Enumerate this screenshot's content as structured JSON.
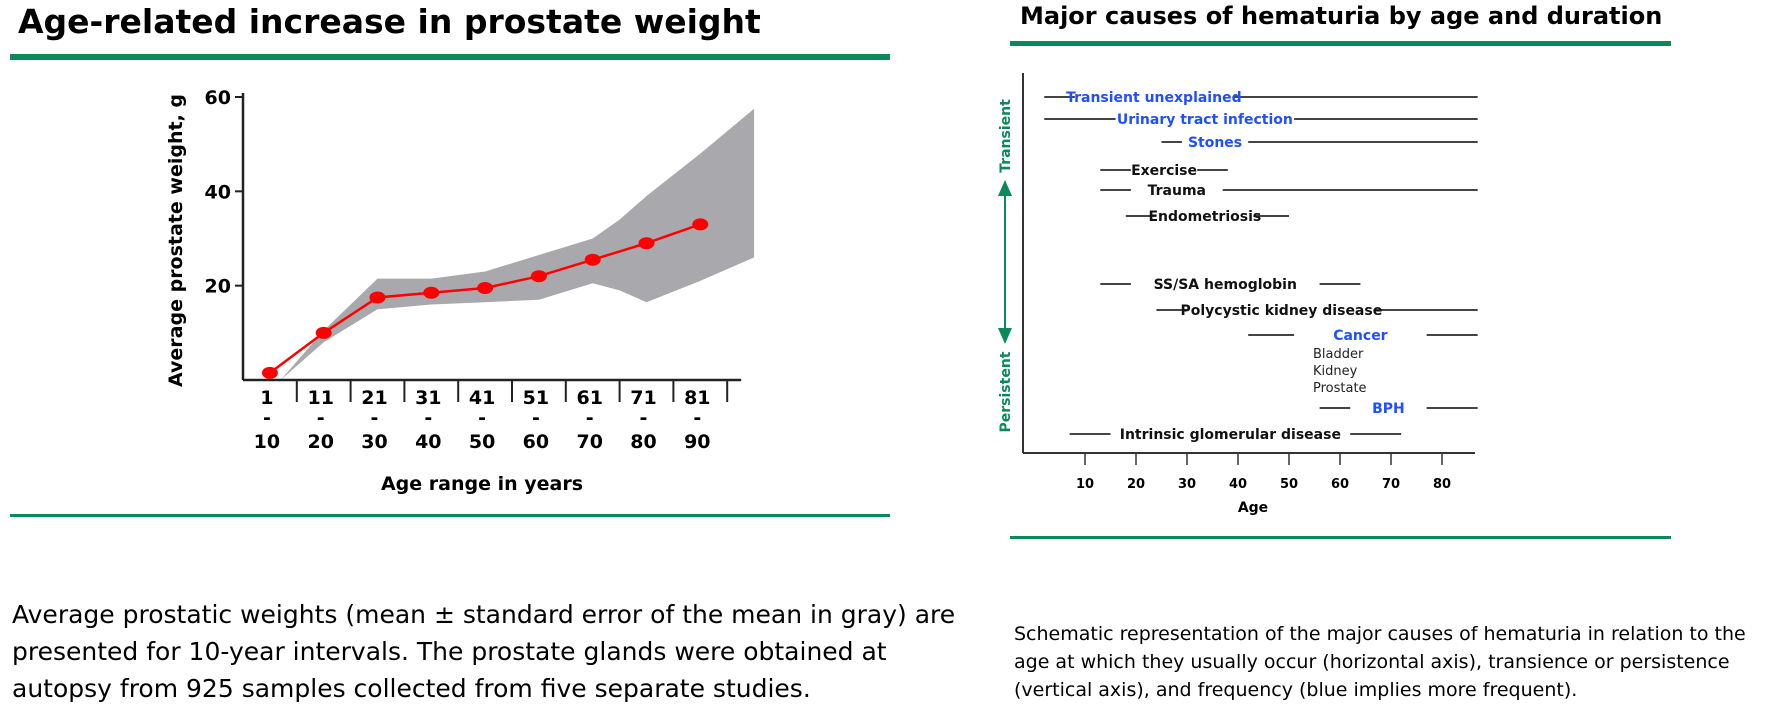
{
  "left": {
    "title": "Age-related increase in prostate weight",
    "caption": "Average prostatic weights (mean ± standard error of the mean in gray) are presented for 10-year intervals. The prostate glands were obtained at autopsy from 925 samples collected from five separate studies.",
    "colors": {
      "rule": "#0a8a5a",
      "band": "#a9a8ac",
      "line": "#ff0000"
    }
  },
  "right": {
    "title": "Major causes of hematuria by age and duration",
    "caption": "Schematic representation of the major causes of hematuria in relation to the age at which they usually occur (horizontal axis), transience or persistence (vertical axis), and frequency (blue implies more frequent).",
    "colors": {
      "rule": "#0a8a5a",
      "frequent": "#1f4fff",
      "common": "#111111",
      "arrow": "#0a8a5a"
    }
  },
  "chart_data": [
    {
      "type": "line",
      "title": "",
      "xlabel": "Age range in years",
      "ylabel": "Average prostate weight, g",
      "ylim": [
        0,
        60
      ],
      "yticks": [
        20,
        40,
        60
      ],
      "categories": [
        {
          "top": "1",
          "mid": "-",
          "bot": "10"
        },
        {
          "top": "11",
          "mid": "-",
          "bot": "20"
        },
        {
          "top": "21",
          "mid": "-",
          "bot": "30"
        },
        {
          "top": "31",
          "mid": "-",
          "bot": "40"
        },
        {
          "top": "41",
          "mid": "-",
          "bot": "50"
        },
        {
          "top": "51",
          "mid": "-",
          "bot": "60"
        },
        {
          "top": "61",
          "mid": "-",
          "bot": "70"
        },
        {
          "top": "71",
          "mid": "-",
          "bot": "80"
        },
        {
          "top": "81",
          "mid": "-",
          "bot": "90"
        }
      ],
      "series": [
        {
          "values": [
            1.5,
            10,
            17.5,
            18.5,
            19.5,
            22,
            25.5,
            29,
            33
          ]
        }
      ],
      "error_band": {
        "x": [
          0.7,
          1.5,
          2.5,
          3.5,
          4.5,
          5.5,
          6.5,
          7.0,
          7.5,
          8.5,
          9.5
        ],
        "upper": [
          0,
          10.5,
          21.5,
          21.5,
          23,
          26.5,
          30,
          34,
          39,
          48,
          57.5
        ],
        "lower": [
          0,
          8,
          15,
          16,
          16.5,
          17,
          20.5,
          19,
          16.5,
          21,
          26
        ]
      }
    },
    {
      "type": "range",
      "title": "",
      "xlabel": "Age",
      "xticks": [
        10,
        20,
        30,
        40,
        50,
        60,
        70,
        80
      ],
      "xlim": [
        0,
        90
      ],
      "y_axis_labels": {
        "top": "Transient",
        "bottom": "Persistent"
      },
      "rows": [
        {
          "label": "Transient unexplained",
          "frequent": true,
          "segments": [
            [
              2,
              8
            ],
            [
              39,
              87
            ]
          ]
        },
        {
          "label": "Urinary tract infection",
          "frequent": true,
          "segments": [
            [
              2,
              16
            ],
            [
              51,
              87
            ]
          ]
        },
        {
          "label": "Stones",
          "frequent": true,
          "segments": [
            [
              25,
              29
            ],
            [
              42,
              87
            ]
          ]
        },
        {
          "label": "Exercise",
          "frequent": false,
          "segments": [
            [
              13,
              19
            ],
            [
              32,
              38
            ]
          ]
        },
        {
          "label": "Trauma",
          "frequent": false,
          "segments": [
            [
              13,
              19
            ],
            [
              37,
              87
            ]
          ]
        },
        {
          "label": "Endometriosis",
          "frequent": false,
          "segments": [
            [
              18,
              24
            ],
            [
              43,
              50
            ]
          ]
        },
        {
          "label": "SS/SA hemoglobin",
          "frequent": false,
          "segments": [
            [
              13,
              19
            ],
            [
              56,
              64
            ]
          ]
        },
        {
          "label": "Polycystic kidney disease",
          "frequent": false,
          "segments": [
            [
              24,
              30
            ],
            [
              67,
              87
            ]
          ]
        },
        {
          "label": "Cancer",
          "frequent": true,
          "sub": [
            "Bladder",
            "Kidney",
            "Prostate"
          ],
          "segments": [
            [
              42,
              51
            ],
            [
              77,
              87
            ]
          ]
        },
        {
          "label": "BPH",
          "frequent": true,
          "segments": [
            [
              56,
              62
            ],
            [
              77,
              87
            ]
          ]
        },
        {
          "label": "Intrinsic glomerular disease",
          "frequent": false,
          "segments": [
            [
              7,
              15
            ],
            [
              62,
              72
            ]
          ]
        }
      ]
    }
  ]
}
